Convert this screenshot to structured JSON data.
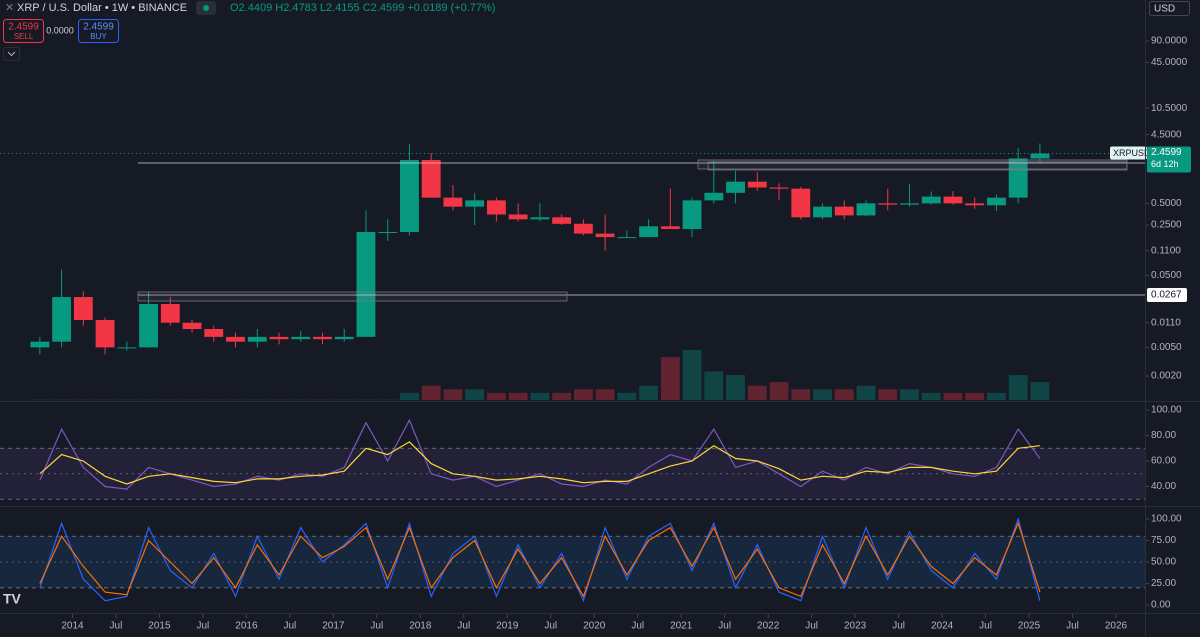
{
  "header": {
    "title": "XRP / U.S. Dollar • 1W • BINANCE",
    "ohlc": "O2.4409 H2.4783 L2.4155 C2.4599 +0.0189 (+0.77%)",
    "sell_price": "2.4599",
    "sell": "SELL",
    "spread": "0.0000",
    "buy_price": "2.4599",
    "buy": "BUY",
    "currency": "USD"
  },
  "chart_data": [
    {
      "type": "candlestick",
      "log_scale": true,
      "up_color": "#089981",
      "down_color": "#f23645",
      "x": [
        "2013-07",
        "2013-10",
        "2014-01",
        "2014-04",
        "2014-07",
        "2014-10",
        "2015-01",
        "2015-04",
        "2015-07",
        "2015-10",
        "2016-01",
        "2016-04",
        "2016-07",
        "2016-10",
        "2017-01",
        "2017-04",
        "2017-07",
        "2017-10",
        "2018-01",
        "2018-04",
        "2018-07",
        "2018-10",
        "2019-01",
        "2019-04",
        "2019-07",
        "2019-10",
        "2020-01",
        "2020-04",
        "2020-07",
        "2020-10",
        "2021-01",
        "2021-04",
        "2021-07",
        "2021-10",
        "2022-01",
        "2022-04",
        "2022-07",
        "2022-10",
        "2023-01",
        "2023-04",
        "2023-07",
        "2023-10",
        "2024-01",
        "2024-04",
        "2024-07",
        "2024-10",
        "2025-01"
      ],
      "open": [
        0.005,
        0.006,
        0.025,
        0.012,
        0.005,
        0.005,
        0.02,
        0.011,
        0.009,
        0.007,
        0.006,
        0.007,
        0.0065,
        0.007,
        0.0065,
        0.007,
        0.2,
        0.2,
        2.0,
        0.6,
        0.45,
        0.55,
        0.35,
        0.3,
        0.32,
        0.26,
        0.19,
        0.17,
        0.17,
        0.24,
        0.22,
        0.55,
        0.7,
        1.0,
        0.83,
        0.8,
        0.32,
        0.45,
        0.34,
        0.5,
        0.48,
        0.5,
        0.62,
        0.5,
        0.47,
        0.6,
        2.1
      ],
      "high": [
        0.007,
        0.06,
        0.03,
        0.013,
        0.006,
        0.03,
        0.025,
        0.012,
        0.01,
        0.008,
        0.009,
        0.008,
        0.0085,
        0.008,
        0.009,
        0.4,
        0.3,
        3.3,
        2.5,
        0.9,
        0.7,
        0.6,
        0.5,
        0.5,
        0.35,
        0.3,
        0.35,
        0.21,
        0.3,
        0.8,
        0.6,
        1.96,
        1.4,
        1.35,
        0.95,
        0.85,
        0.5,
        0.55,
        0.55,
        0.8,
        0.93,
        0.73,
        0.74,
        0.6,
        0.66,
        2.9,
        3.4
      ],
      "low": [
        0.004,
        0.005,
        0.01,
        0.004,
        0.0045,
        0.005,
        0.01,
        0.008,
        0.006,
        0.005,
        0.005,
        0.0055,
        0.006,
        0.0055,
        0.006,
        0.007,
        0.15,
        0.18,
        0.6,
        0.4,
        0.25,
        0.28,
        0.28,
        0.28,
        0.25,
        0.18,
        0.11,
        0.17,
        0.17,
        0.23,
        0.17,
        0.5,
        0.5,
        0.75,
        0.55,
        0.3,
        0.3,
        0.3,
        0.33,
        0.4,
        0.45,
        0.48,
        0.48,
        0.42,
        0.39,
        0.5,
        1.9
      ],
      "close": [
        0.006,
        0.025,
        0.012,
        0.005,
        0.005,
        0.02,
        0.011,
        0.009,
        0.007,
        0.006,
        0.007,
        0.0065,
        0.007,
        0.0065,
        0.007,
        0.2,
        0.2,
        2.0,
        0.6,
        0.45,
        0.55,
        0.35,
        0.3,
        0.32,
        0.26,
        0.19,
        0.17,
        0.17,
        0.24,
        0.22,
        0.55,
        0.7,
        1.0,
        0.83,
        0.8,
        0.32,
        0.45,
        0.34,
        0.5,
        0.48,
        0.5,
        0.62,
        0.5,
        0.47,
        0.6,
        2.1,
        2.4599
      ],
      "volume": [
        0.1,
        0.1,
        0.1,
        0.1,
        0.1,
        0.1,
        0.1,
        0.1,
        0.1,
        0.1,
        0.1,
        0.1,
        0.1,
        0.1,
        0.1,
        0.1,
        0.1,
        2,
        4,
        3,
        3,
        2,
        2,
        2,
        2,
        3,
        3,
        2,
        4,
        12,
        14,
        8,
        7,
        4,
        5,
        3,
        3,
        3,
        4,
        3,
        3,
        2,
        2,
        2,
        2,
        7,
        5
      ],
      "ylim": [
        0.00093,
        333
      ],
      "yticks": [
        {
          "value": 90,
          "label": "90.0000"
        },
        {
          "value": 45,
          "label": "45.0000"
        },
        {
          "value": 10.5,
          "label": "10.5000"
        },
        {
          "value": 4.5,
          "label": "4.5000"
        },
        {
          "value": 0.5,
          "label": "0.5000"
        },
        {
          "value": 0.25,
          "label": "0.2500"
        },
        {
          "value": 0.11,
          "label": "0.1100"
        },
        {
          "value": 0.05,
          "label": "0.0500"
        },
        {
          "value": 0.011,
          "label": "0.0110"
        },
        {
          "value": 0.005,
          "label": "0.0050"
        },
        {
          "value": 0.002,
          "label": "0.0020"
        }
      ],
      "xlim": [
        "2013-03",
        "2026-05"
      ],
      "symbol": "XRPUSD",
      "last_price": 2.4599,
      "countdown": "6d 12h",
      "levels": [
        1.8152,
        0.0267
      ]
    },
    {
      "type": "line",
      "x": [
        "2013-07",
        "2013-10",
        "2014-01",
        "2014-04",
        "2014-07",
        "2014-10",
        "2015-01",
        "2015-04",
        "2015-07",
        "2015-10",
        "2016-01",
        "2016-04",
        "2016-07",
        "2016-10",
        "2017-01",
        "2017-04",
        "2017-07",
        "2017-10",
        "2018-01",
        "2018-04",
        "2018-07",
        "2018-10",
        "2019-01",
        "2019-04",
        "2019-07",
        "2019-10",
        "2020-01",
        "2020-04",
        "2020-07",
        "2020-10",
        "2021-01",
        "2021-04",
        "2021-07",
        "2021-10",
        "2022-01",
        "2022-04",
        "2022-07",
        "2022-10",
        "2023-01",
        "2023-04",
        "2023-07",
        "2023-10",
        "2024-01",
        "2024-04",
        "2024-07",
        "2024-10",
        "2025-01"
      ],
      "series": [
        {
          "color": "#7e57c2",
          "values": [
            45,
            85,
            55,
            40,
            38,
            55,
            50,
            45,
            40,
            42,
            48,
            45,
            50,
            48,
            55,
            90,
            60,
            92,
            50,
            45,
            48,
            40,
            45,
            50,
            42,
            40,
            45,
            42,
            55,
            65,
            60,
            85,
            55,
            60,
            50,
            40,
            52,
            45,
            55,
            50,
            58,
            55,
            50,
            48,
            55,
            85,
            62
          ]
        },
        {
          "color": "#fdd835",
          "values": [
            50,
            65,
            60,
            48,
            42,
            48,
            50,
            47,
            44,
            43,
            46,
            46,
            48,
            49,
            52,
            70,
            65,
            75,
            58,
            50,
            48,
            45,
            46,
            48,
            46,
            43,
            44,
            44,
            50,
            56,
            60,
            72,
            62,
            60,
            54,
            45,
            48,
            47,
            52,
            51,
            55,
            55,
            52,
            50,
            52,
            70,
            72
          ]
        }
      ],
      "band": [
        30,
        70
      ],
      "midline": 50,
      "band_color": "#7e57c2",
      "xlim": [
        "2013-03",
        "2026-05"
      ],
      "ylim": [
        25.5,
        105.5
      ],
      "yticks": [
        {
          "value": 100,
          "label": "100.00"
        },
        {
          "value": 80,
          "label": "80.00"
        },
        {
          "value": 60,
          "label": "60.00"
        },
        {
          "value": 40,
          "label": "40.00"
        }
      ]
    },
    {
      "type": "line",
      "x": [
        "2013-07",
        "2013-10",
        "2014-01",
        "2014-04",
        "2014-07",
        "2014-10",
        "2015-01",
        "2015-04",
        "2015-07",
        "2015-10",
        "2016-01",
        "2016-04",
        "2016-07",
        "2016-10",
        "2017-01",
        "2017-04",
        "2017-07",
        "2017-10",
        "2018-01",
        "2018-04",
        "2018-07",
        "2018-10",
        "2019-01",
        "2019-04",
        "2019-07",
        "2019-10",
        "2020-01",
        "2020-04",
        "2020-07",
        "2020-10",
        "2021-01",
        "2021-04",
        "2021-07",
        "2021-10",
        "2022-01",
        "2022-04",
        "2022-07",
        "2022-10",
        "2023-01",
        "2023-04",
        "2023-07",
        "2023-10",
        "2024-01",
        "2024-04",
        "2024-07",
        "2024-10",
        "2025-01"
      ],
      "series": [
        {
          "color": "#2962ff",
          "values": [
            20,
            95,
            30,
            5,
            10,
            90,
            40,
            20,
            60,
            10,
            80,
            30,
            90,
            50,
            70,
            95,
            20,
            95,
            10,
            60,
            80,
            10,
            70,
            20,
            60,
            5,
            90,
            30,
            80,
            95,
            40,
            95,
            20,
            70,
            15,
            5,
            80,
            20,
            90,
            30,
            85,
            40,
            20,
            60,
            30,
            100,
            5
          ]
        },
        {
          "color": "#ff6d00",
          "values": [
            25,
            80,
            45,
            15,
            12,
            75,
            50,
            25,
            55,
            20,
            70,
            35,
            80,
            55,
            68,
            90,
            30,
            90,
            20,
            55,
            75,
            20,
            65,
            25,
            55,
            10,
            80,
            35,
            75,
            90,
            45,
            90,
            30,
            65,
            20,
            10,
            70,
            25,
            80,
            35,
            80,
            45,
            25,
            55,
            35,
            95,
            15
          ]
        }
      ],
      "band": [
        20,
        80
      ],
      "midline": 50,
      "band_color": "#2196f3",
      "xlim": [
        "2013-03",
        "2026-05"
      ],
      "ylim": [
        -8.1,
        112.8
      ],
      "yticks": [
        {
          "value": 100,
          "label": "100.00"
        },
        {
          "value": 75,
          "label": "75.00"
        },
        {
          "value": 50,
          "label": "50.00"
        },
        {
          "value": 25,
          "label": "25.00"
        },
        {
          "value": 0,
          "label": "0.00"
        }
      ],
      "xticks": [
        {
          "value": "2014-01",
          "label": "2014"
        },
        {
          "value": "2014-07",
          "label": "Jul"
        },
        {
          "value": "2015-01",
          "label": "2015"
        },
        {
          "value": "2015-07",
          "label": "Jul"
        },
        {
          "value": "2016-01",
          "label": "2016"
        },
        {
          "value": "2016-07",
          "label": "Jul"
        },
        {
          "value": "2017-01",
          "label": "2017"
        },
        {
          "value": "2017-07",
          "label": "Jul"
        },
        {
          "value": "2018-01",
          "label": "2018"
        },
        {
          "value": "2018-07",
          "label": "Jul"
        },
        {
          "value": "2019-01",
          "label": "2019"
        },
        {
          "value": "2019-07",
          "label": "Jul"
        },
        {
          "value": "2020-01",
          "label": "2020"
        },
        {
          "value": "2020-07",
          "label": "Jul"
        },
        {
          "value": "2021-01",
          "label": "2021"
        },
        {
          "value": "2021-07",
          "label": "Jul"
        },
        {
          "value": "2022-01",
          "label": "2022"
        },
        {
          "value": "2022-07",
          "label": "Jul"
        },
        {
          "value": "2023-01",
          "label": "2023"
        },
        {
          "value": "2023-07",
          "label": "Jul"
        },
        {
          "value": "2024-01",
          "label": "2024"
        },
        {
          "value": "2024-07",
          "label": "Jul"
        },
        {
          "value": "2025-01",
          "label": "2025"
        },
        {
          "value": "2025-07",
          "label": "Jul"
        },
        {
          "value": "2026-01",
          "label": "2026"
        }
      ]
    }
  ]
}
